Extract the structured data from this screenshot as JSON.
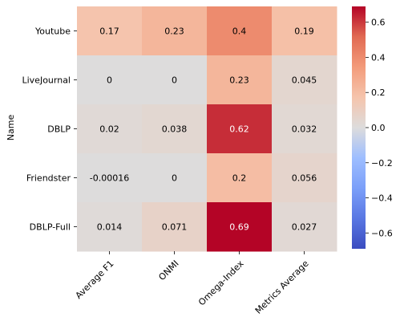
{
  "chart_data": {
    "type": "heatmap",
    "title": "",
    "xlabel": "",
    "ylabel": "Name",
    "rows": [
      "Youtube",
      "LiveJournal",
      "DBLP",
      "Friendster",
      "DBLP-Full"
    ],
    "columns": [
      "Average F1",
      "ONMI",
      "Omega-Index",
      "Metrics Average"
    ],
    "values": [
      [
        0.17,
        0.23,
        0.4,
        0.19
      ],
      [
        0,
        0,
        0.23,
        0.045
      ],
      [
        0.02,
        0.038,
        0.62,
        0.032
      ],
      [
        -0.00016,
        0,
        0.2,
        0.056
      ],
      [
        0.014,
        0.071,
        0.69,
        0.027
      ]
    ],
    "cell_labels": [
      [
        "0.17",
        "0.23",
        "0.4",
        "0.19"
      ],
      [
        "0",
        "0",
        "0.23",
        "0.045"
      ],
      [
        "0.02",
        "0.038",
        "0.62",
        "0.032"
      ],
      [
        "-0.00016",
        "0",
        "0.2",
        "0.056"
      ],
      [
        "0.014",
        "0.071",
        "0.69",
        "0.027"
      ]
    ],
    "colormap": "coolwarm",
    "vmin": -0.69,
    "vmax": 0.69,
    "colorbar_ticks": [
      0.6,
      0.4,
      0.2,
      0.0,
      -0.2,
      -0.4,
      -0.6
    ],
    "colorbar_tick_labels": [
      "0.6",
      "0.4",
      "0.2",
      "0.0",
      "−0.2",
      "−0.4",
      "−0.6"
    ],
    "grid": false,
    "legend": "colorbar-right"
  }
}
